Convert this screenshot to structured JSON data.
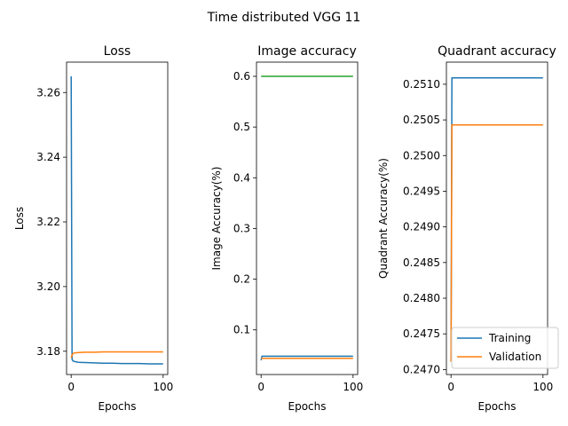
{
  "chart_data": {
    "suptitle": "Time distributed VGG 11",
    "charts": [
      {
        "type": "line",
        "title": "Loss",
        "xlabel": "Epochs",
        "ylabel": "Loss",
        "xlim": [
          -5,
          105
        ],
        "ylim": [
          3.1728,
          3.2694
        ],
        "xticks": [
          0,
          100
        ],
        "xtick_labels": [
          "0",
          "100"
        ],
        "yticks": [
          3.18,
          3.2,
          3.22,
          3.24,
          3.26
        ],
        "ytick_labels": [
          "3.18",
          "3.20",
          "3.22",
          "3.24",
          "3.26"
        ],
        "series": [
          {
            "color": "#1f77b4",
            "x": [
              0,
              1,
              2,
              4,
              8,
              15,
              25,
              35,
              45,
              55,
              65,
              75,
              85,
              100
            ],
            "y": [
              3.265,
              3.1775,
              3.177,
              3.1768,
              3.1766,
              3.1765,
              3.1764,
              3.1763,
              3.1763,
              3.1762,
              3.1762,
              3.1762,
              3.1761,
              3.1761
            ]
          },
          {
            "color": "#ff7f0e",
            "x": [
              0,
              1,
              2,
              4,
              8,
              15,
              25,
              35,
              45,
              55,
              65,
              75,
              85,
              100
            ],
            "y": [
              3.178,
              3.1788,
              3.1793,
              3.1795,
              3.1796,
              3.1797,
              3.1797,
              3.1798,
              3.1798,
              3.1798,
              3.1798,
              3.1798,
              3.1798,
              3.1798
            ]
          }
        ]
      },
      {
        "type": "line",
        "title": "Image accuracy",
        "xlabel": "Epochs",
        "ylabel": "Image Accuracy(%)",
        "xlim": [
          -5,
          105
        ],
        "ylim": [
          0.012,
          0.628
        ],
        "xticks": [
          0,
          100
        ],
        "xtick_labels": [
          "0",
          "100"
        ],
        "yticks": [
          0.1,
          0.2,
          0.3,
          0.4,
          0.5,
          0.6
        ],
        "ytick_labels": [
          "0.1",
          "0.2",
          "0.3",
          "0.4",
          "0.5",
          "0.6"
        ],
        "series": [
          {
            "color": "#1f77b4",
            "x": [
              0,
              1,
              100
            ],
            "y": [
              0.04,
              0.048,
              0.048
            ]
          },
          {
            "color": "#ff7f0e",
            "x": [
              0,
              1,
              100
            ],
            "y": [
              0.044,
              0.044,
              0.044
            ]
          },
          {
            "color": "#2ca02c",
            "x": [
              0,
              100
            ],
            "y": [
              0.6,
              0.6
            ]
          }
        ]
      },
      {
        "type": "line",
        "title": "Quadrant accuracy",
        "xlabel": "Epochs",
        "ylabel": "Quadrant Accuracy(%)",
        "xlim": [
          -5,
          105
        ],
        "ylim": [
          0.24693,
          0.25131
        ],
        "xticks": [
          0,
          100
        ],
        "xtick_labels": [
          "0",
          "100"
        ],
        "yticks": [
          0.247,
          0.2475,
          0.248,
          0.2485,
          0.249,
          0.2495,
          0.25,
          0.2505,
          0.251
        ],
        "ytick_labels": [
          "0.2470",
          "0.2475",
          "0.2480",
          "0.2485",
          "0.2490",
          "0.2495",
          "0.2500",
          "0.2505",
          "0.2510"
        ],
        "series": [
          {
            "name": "Training",
            "color": "#1f77b4",
            "x": [
              0,
              1,
              100
            ],
            "y": [
              0.24711,
              0.25109,
              0.25109
            ]
          },
          {
            "name": "Validation",
            "color": "#ff7f0e",
            "x": [
              0,
              1,
              100
            ],
            "y": [
              0.24711,
              0.25043,
              0.25043
            ]
          }
        ],
        "legend": {
          "placement": "lower-right",
          "entries": [
            "Training",
            "Validation"
          ]
        }
      }
    ]
  }
}
